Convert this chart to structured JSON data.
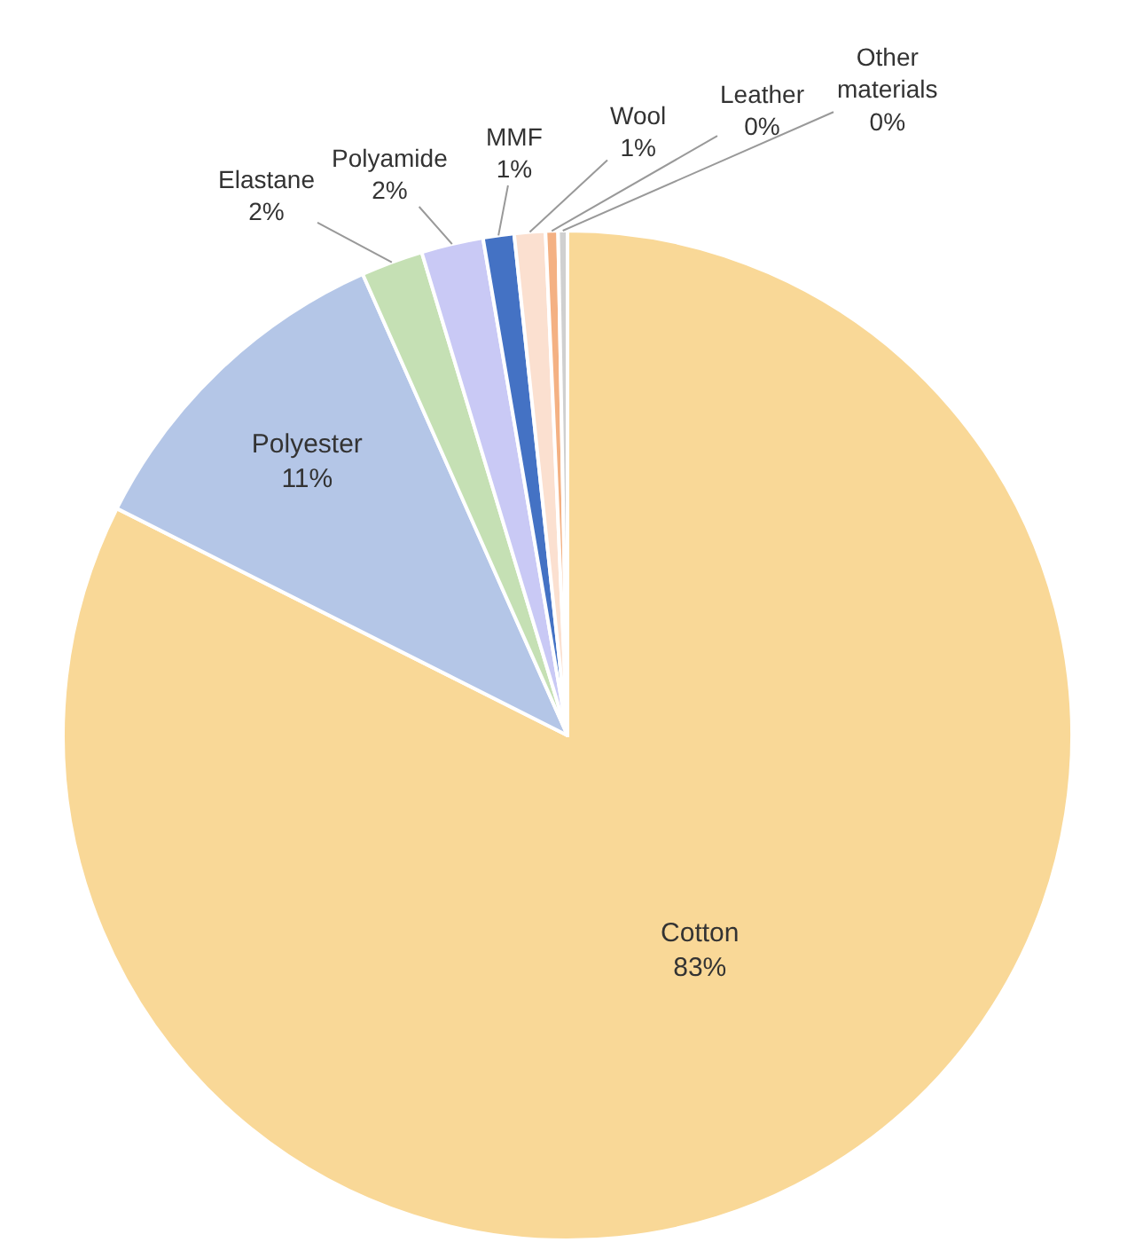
{
  "chart_data": {
    "type": "pie",
    "categories": [
      "Cotton",
      "Polyester",
      "Elastane",
      "Polyamide",
      "MMF",
      "Wool",
      "Leather",
      "Other materials"
    ],
    "values": [
      83,
      11,
      2,
      2,
      1,
      1,
      0.4,
      0.3
    ],
    "value_labels": [
      "83%",
      "11%",
      "2%",
      "2%",
      "1%",
      "1%",
      "0%",
      "0%"
    ],
    "colors": [
      "#f9d897",
      "#b4c6e7",
      "#c5e0b4",
      "#c9c9f5",
      "#4472c4",
      "#fbe0d0",
      "#f4b183",
      "#d0d0d0"
    ],
    "legend": false
  }
}
